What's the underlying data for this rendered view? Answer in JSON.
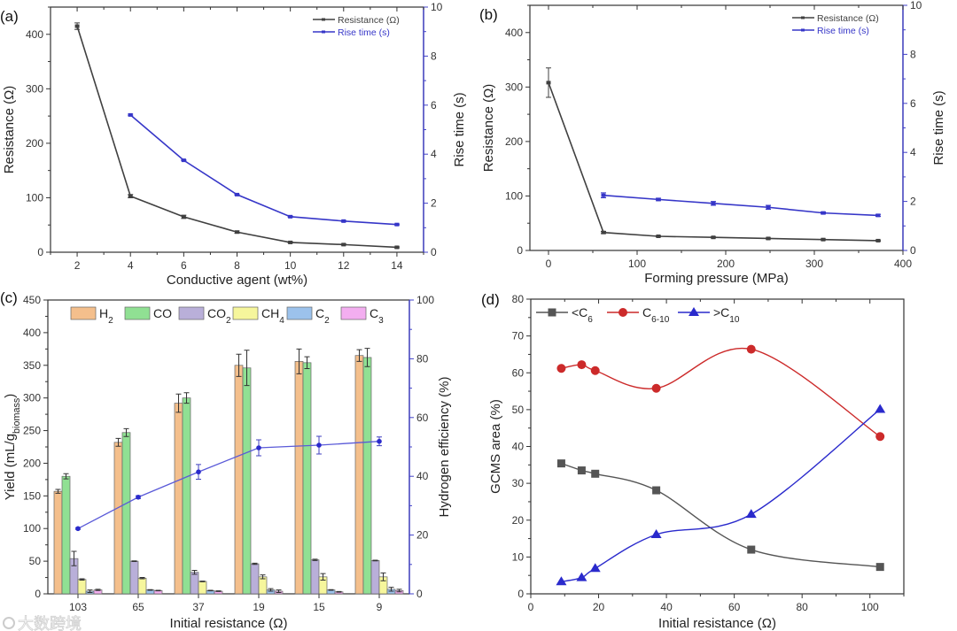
{
  "watermark": "大数跨境",
  "colors": {
    "black_series": "#404040",
    "blue_series": "#3636c8",
    "right_axis": "#4040c8",
    "d_lt_c6": "#555555",
    "d_c6_10": "#cc2a2a",
    "d_gt_c10": "#2a2acc",
    "bars": [
      "#f4bf8c",
      "#90e093",
      "#b9afd9",
      "#f6f69c",
      "#9cc2ec",
      "#f3aef0"
    ]
  },
  "chart_data": [
    {
      "panel": "(a)",
      "type": "line",
      "xlabel": "Conductive agent (wt%)",
      "ylabel": "Resistance (Ω)",
      "y2label": "Rise time (s)",
      "xlim": [
        1,
        15
      ],
      "ylim": [
        0,
        450
      ],
      "y2lim": [
        0,
        10
      ],
      "xticks": [
        2,
        4,
        6,
        8,
        10,
        12,
        14
      ],
      "yticks": [
        0,
        100,
        200,
        300,
        400
      ],
      "y2ticks": [
        0,
        2,
        4,
        6,
        8,
        10
      ],
      "legend": [
        "Resistance (Ω)",
        "Rise time (s)"
      ],
      "legend_position": "top-right",
      "series": [
        {
          "name": "Resistance (Ω)",
          "axis": "left",
          "x": [
            2,
            4,
            6,
            8,
            10,
            12,
            14
          ],
          "y": [
            415,
            103,
            65,
            37,
            18,
            14,
            9
          ],
          "err": [
            6,
            3,
            3,
            2,
            1,
            1,
            1
          ]
        },
        {
          "name": "Rise time (s)",
          "axis": "right",
          "x": [
            4,
            6,
            8,
            10,
            12,
            14
          ],
          "y": [
            5.6,
            3.75,
            2.35,
            1.45,
            1.27,
            1.13
          ],
          "err": [
            0.03,
            0.02,
            0.02,
            0.02,
            0.02,
            0.02
          ]
        }
      ]
    },
    {
      "panel": "(b)",
      "type": "line",
      "xlabel": "Forming pressure (MPa)",
      "ylabel": "Resistance (Ω)",
      "y2label": "Rise time (s)",
      "xlim": [
        -21,
        400
      ],
      "ylim": [
        0,
        450
      ],
      "y2lim": [
        0,
        10
      ],
      "xticks": [
        0,
        100,
        200,
        300,
        400
      ],
      "yticks": [
        0,
        100,
        200,
        300,
        400
      ],
      "y2ticks": [
        0,
        2,
        4,
        6,
        8,
        10
      ],
      "legend": [
        "Resistance (Ω)",
        "Rise time (s)"
      ],
      "legend_position": "top-right",
      "series": [
        {
          "name": "Resistance (Ω)",
          "axis": "left",
          "x": [
            0,
            62,
            124,
            186,
            248,
            310,
            372
          ],
          "y": [
            308,
            33,
            26,
            24,
            22,
            20,
            18
          ],
          "err": [
            27,
            2,
            1,
            1,
            1,
            1,
            1
          ]
        },
        {
          "name": "Rise time (s)",
          "axis": "right",
          "x": [
            62,
            124,
            186,
            248,
            310,
            372
          ],
          "y": [
            2.25,
            2.08,
            1.92,
            1.76,
            1.53,
            1.43
          ],
          "err": [
            0.1,
            0.05,
            0.08,
            0.08,
            0.04,
            0.04
          ]
        }
      ]
    },
    {
      "panel": "(c)",
      "type": "bar",
      "xlabel": "Initial resistance (Ω)",
      "ylabel": [
        {
          "t": "Yield (mL/g",
          "sub": "biomass"
        },
        {
          "t": ")"
        }
      ],
      "y2label": "Hydrogen efficiency (%)",
      "categories": [
        "103",
        "65",
        "37",
        "19",
        "15",
        "9"
      ],
      "ylim": [
        0,
        450
      ],
      "y2lim": [
        0,
        100
      ],
      "yticks": [
        0,
        50,
        100,
        150,
        200,
        250,
        300,
        350,
        400,
        450
      ],
      "y2ticks": [
        0,
        20,
        40,
        60,
        80,
        100
      ],
      "legend_position": "top",
      "series": [
        {
          "name": [
            {
              "t": "H",
              "sub": "2"
            }
          ],
          "values": [
            157,
            232,
            292,
            350,
            356,
            365
          ],
          "err": [
            3,
            6,
            14,
            17,
            19,
            9
          ]
        },
        {
          "name": [
            {
              "t": "CO"
            }
          ],
          "values": [
            180,
            247,
            300,
            346,
            354,
            362
          ],
          "err": [
            4,
            6,
            8,
            27,
            9,
            14
          ]
        },
        {
          "name": [
            {
              "t": "CO",
              "sub": "2"
            }
          ],
          "values": [
            54,
            50,
            33,
            46,
            52,
            51
          ],
          "err": [
            11,
            0.5,
            3,
            1,
            1,
            0.5
          ]
        },
        {
          "name": [
            {
              "t": "CH",
              "sub": "4"
            }
          ],
          "values": [
            22,
            24,
            19,
            26,
            26,
            26
          ],
          "err": [
            1,
            1,
            0.5,
            3,
            5,
            6
          ]
        },
        {
          "name": [
            {
              "t": "C",
              "sub": "2"
            }
          ],
          "values": [
            4,
            6,
            5,
            6,
            6,
            7
          ],
          "err": [
            2,
            0.5,
            0.5,
            2,
            0.5,
            3
          ]
        },
        {
          "name": [
            {
              "t": "C",
              "sub": "3"
            }
          ],
          "values": [
            6,
            5,
            4,
            4,
            3,
            5
          ],
          "err": [
            1,
            0.5,
            0.5,
            2,
            0.5,
            2
          ]
        }
      ],
      "line_series": {
        "name": "Hydrogen efficiency (%)",
        "axis": "right",
        "values": [
          22.2,
          32.9,
          41.5,
          49.7,
          50.6,
          51.9
        ],
        "err": [
          0.3,
          0.5,
          2.5,
          2.7,
          3.0,
          1.5
        ]
      }
    },
    {
      "panel": "(d)",
      "type": "line",
      "xlabel": "Initial resistance (Ω)",
      "ylabel": "GCMS area (%)",
      "xlim": [
        0,
        110
      ],
      "ylim": [
        0,
        80
      ],
      "xticks": [
        0,
        20,
        40,
        60,
        80,
        100
      ],
      "yticks": [
        0,
        10,
        20,
        30,
        40,
        50,
        60,
        70,
        80
      ],
      "legend_position": "top-left",
      "series": [
        {
          "name": [
            {
              "t": "<C",
              "sub": "6"
            }
          ],
          "marker": "square",
          "x": [
            9,
            15,
            19,
            37,
            65,
            103
          ],
          "y": [
            35.4,
            33.5,
            32.6,
            28.1,
            12.0,
            7.3
          ]
        },
        {
          "name": [
            {
              "t": "C",
              "sub": "6-10"
            }
          ],
          "marker": "circle",
          "x": [
            9,
            15,
            19,
            37,
            65,
            103
          ],
          "y": [
            61.2,
            62.2,
            60.6,
            55.8,
            66.4,
            42.7
          ]
        },
        {
          "name": [
            {
              "t": ">C",
              "sub": "10"
            }
          ],
          "marker": "triangle",
          "x": [
            9,
            15,
            19,
            37,
            65,
            103
          ],
          "y": [
            3.3,
            4.4,
            6.9,
            16.1,
            21.6,
            50.1
          ]
        }
      ]
    }
  ]
}
